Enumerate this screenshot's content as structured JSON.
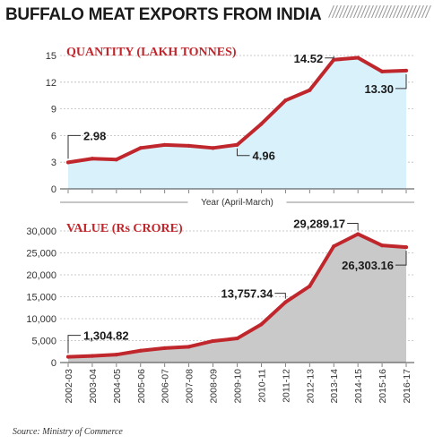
{
  "title": "BUFFALO MEAT EXPORTS FROM INDIA",
  "source": "Source: Ministry of Commerce",
  "colors": {
    "accent": "#c0272d",
    "quantity_fill": "#d9f1fb",
    "value_fill": "#c9c9c9",
    "line": "#c0272d",
    "title_stripe": "#999999"
  },
  "chart_data": [
    {
      "type": "area",
      "title": "QUANTITY (LAKH TONNES)",
      "xlabel": "Year (April-March)",
      "ylabel": "",
      "ylim": [
        0,
        15
      ],
      "yticks": [
        "0",
        "3",
        "6",
        "9",
        "12",
        "15"
      ],
      "grid": true,
      "x": [
        "2002-03",
        "2003-04",
        "2004-05",
        "2005-06",
        "2006-07",
        "2007-08",
        "2008-09",
        "2009-10",
        "2010-11",
        "2011-12",
        "2012-13",
        "2013-14",
        "2014-15",
        "2015-16",
        "2016-17"
      ],
      "values": [
        2.98,
        3.4,
        3.3,
        4.6,
        4.95,
        4.85,
        4.6,
        4.96,
        7.3,
        9.95,
        11.1,
        14.52,
        14.75,
        13.2,
        13.3
      ],
      "annotations": [
        {
          "index": 0,
          "text": "2.98"
        },
        {
          "index": 7,
          "text": "4.96"
        },
        {
          "index": 11,
          "text": "14.52"
        },
        {
          "index": 14,
          "text": "13.30"
        }
      ]
    },
    {
      "type": "area",
      "title": "VALUE (Rs CRORE)",
      "xlabel": "",
      "ylabel": "",
      "ylim": [
        0,
        30000
      ],
      "yticks": [
        "0",
        "5,000",
        "10,000",
        "15,000",
        "20,000",
        "25,000",
        "30,000"
      ],
      "grid": true,
      "x": [
        "2002-03",
        "2003-04",
        "2004-05",
        "2005-06",
        "2006-07",
        "2007-08",
        "2008-09",
        "2009-10",
        "2010-11",
        "2011-12",
        "2012-13",
        "2013-14",
        "2014-15",
        "2015-16",
        "2016-17"
      ],
      "values": [
        1304.82,
        1500,
        1800,
        2700,
        3300,
        3600,
        4900,
        5500,
        8700,
        13757.34,
        17400,
        26500,
        29289.17,
        26700,
        26303.16
      ],
      "annotations": [
        {
          "index": 0,
          "text": "1,304.82"
        },
        {
          "index": 9,
          "text": "13,757.34"
        },
        {
          "index": 12,
          "text": "29,289.17"
        },
        {
          "index": 14,
          "text": "26,303.16"
        }
      ]
    }
  ]
}
